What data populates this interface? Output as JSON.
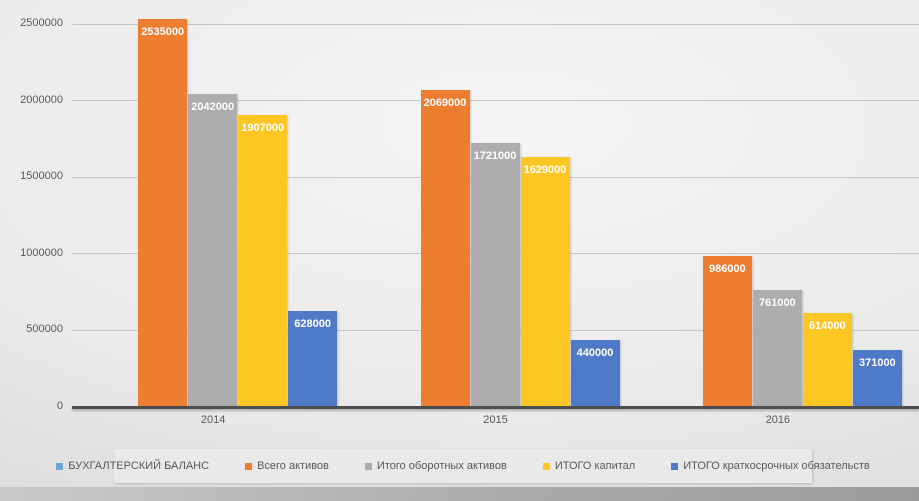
{
  "chart_data": {
    "type": "bar",
    "title": "",
    "xlabel": "",
    "ylabel": "",
    "categories": [
      "2014",
      "2015",
      "2016"
    ],
    "series": [
      {
        "name": "БУХГАЛТЕРСКИЙ БАЛАНС",
        "color": "#6FA3D8",
        "values": [
          null,
          null,
          null
        ]
      },
      {
        "name": "Всего активов",
        "color": "#ED7D31",
        "values": [
          2535000,
          2069000,
          986000
        ]
      },
      {
        "name": "Итого оборотных активов",
        "color": "#ADADAD",
        "values": [
          2042000,
          1721000,
          761000
        ]
      },
      {
        "name": "ИТОГО капитал",
        "color": "#FDC723",
        "values": [
          1907000,
          1629000,
          614000
        ]
      },
      {
        "name": "ИТОГО краткосрочных обязательств",
        "color": "#4E7AC7",
        "values": [
          628000,
          440000,
          371000
        ]
      }
    ],
    "ylim": [
      0,
      2500000
    ],
    "ytick_step": 500000,
    "ytick_labels": [
      "0",
      "500000",
      "1000000",
      "1500000",
      "2000000",
      "2500000"
    ],
    "grid": true,
    "data_labels": true,
    "legend_position": "bottom"
  },
  "style": {
    "axis_color": "#4d4d4d",
    "gridline_color": "#c7c7c7",
    "tick_label_color": "#595959",
    "data_label_color": "#ffffff",
    "legend_bg": "#e9e9e9"
  }
}
